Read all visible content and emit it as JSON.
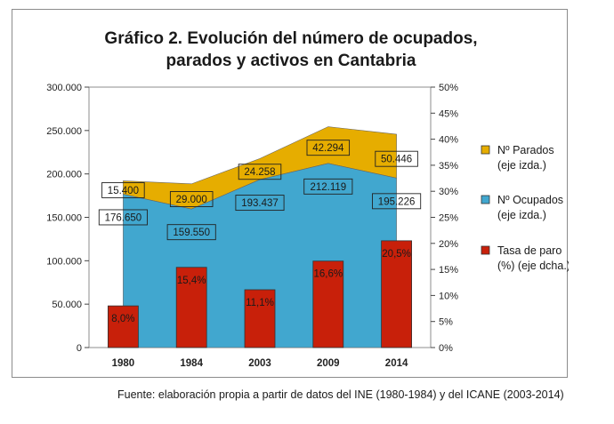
{
  "colors": {
    "parados": "#e6ad00",
    "ocupados": "#41a7cf",
    "tasa": "#c8200a",
    "plot_bg": "#ffffff"
  },
  "chart_data": {
    "type": "area",
    "title": [
      "Gráfico 2. Evolución del número de ocupados,",
      "parados y activos en Cantabria"
    ],
    "categories": [
      "1980",
      "1984",
      "2003",
      "2009",
      "2014"
    ],
    "series": [
      {
        "name": "Nº Ocupados",
        "name_extra": "(eje izda.)",
        "kind": "area",
        "axis": "left",
        "values": [
          176650,
          159550,
          193437,
          212119,
          195226
        ],
        "labels": [
          "176.650",
          "159.550",
          "193.437",
          "212.119",
          "195.226"
        ]
      },
      {
        "name": "Nº Parados",
        "name_extra": "(eje izda.)",
        "kind": "area-stacked",
        "axis": "left",
        "values": [
          15400,
          29000,
          24258,
          42294,
          50446
        ],
        "labels": [
          "15.400",
          "29.000",
          "24.258",
          "42.294",
          "50.446"
        ]
      },
      {
        "name": "Tasa de paro",
        "name_extra": "(%) (eje dcha.)",
        "kind": "bar",
        "axis": "right",
        "values": [
          8.0,
          15.4,
          11.1,
          16.6,
          20.5
        ],
        "labels": [
          "8,0%",
          "15,4%",
          "11,1%",
          "16,6%",
          "20,5%"
        ]
      }
    ],
    "y_left": {
      "ylim": [
        0,
        300000
      ],
      "ticks": [
        "0",
        "50.000",
        "100.000",
        "150.000",
        "200.000",
        "250.000",
        "300.000"
      ]
    },
    "y_right": {
      "ylim": [
        0,
        50
      ],
      "ticks": [
        "0%",
        "5%",
        "10%",
        "15%",
        "20%",
        "25%",
        "30%",
        "35%",
        "40%",
        "45%",
        "50%"
      ]
    },
    "legend_position": "right",
    "legend_order": [
      1,
      0,
      2
    ],
    "grid": false
  },
  "source": "Fuente: elaboración propia a partir de datos del INE (1980-1984)  y del ICANE (2003-2014)"
}
